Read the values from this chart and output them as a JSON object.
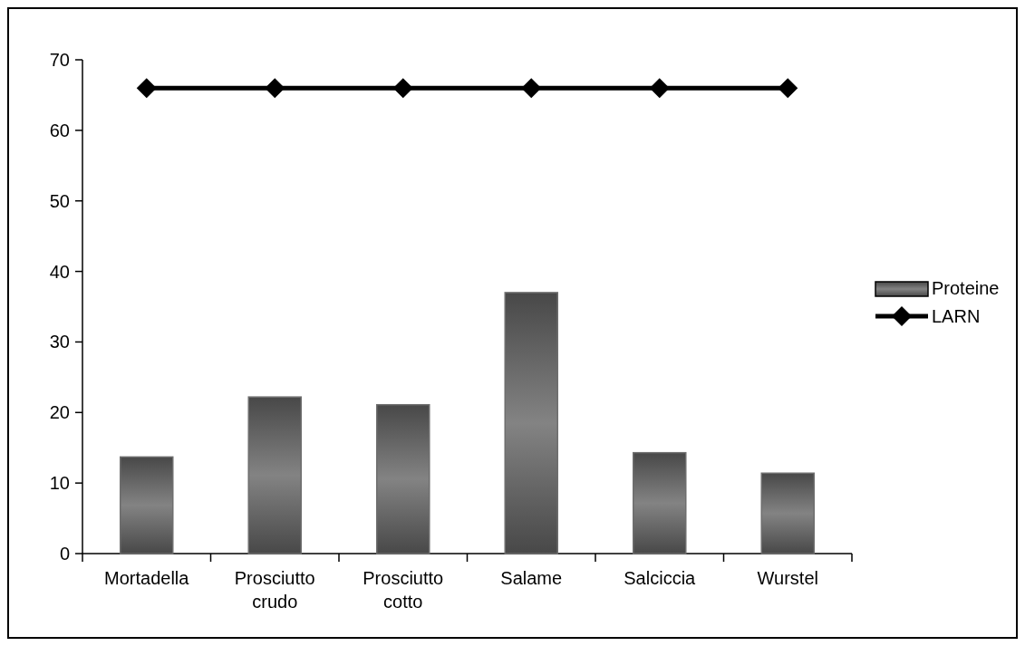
{
  "chart_data": {
    "type": "bar",
    "categories": [
      "Mortadella",
      "Prosciutto crudo",
      "Prosciutto cotto",
      "Salame",
      "Salciccia",
      "Wurstel"
    ],
    "series": [
      {
        "name": "Proteine",
        "color": "#6e6e6e",
        "values": [
          13.7,
          22.2,
          21.1,
          37.0,
          14.3,
          11.4
        ]
      },
      {
        "name": "LARN",
        "type": "line",
        "color": "#000000",
        "values": [
          66,
          66,
          66,
          66,
          66,
          66
        ]
      }
    ],
    "ylim": [
      0,
      70
    ],
    "yticks": [
      0,
      10,
      20,
      30,
      40,
      50,
      60,
      70
    ],
    "grid": false,
    "legend": "right",
    "marker": "diamond",
    "line_style": "solid"
  }
}
